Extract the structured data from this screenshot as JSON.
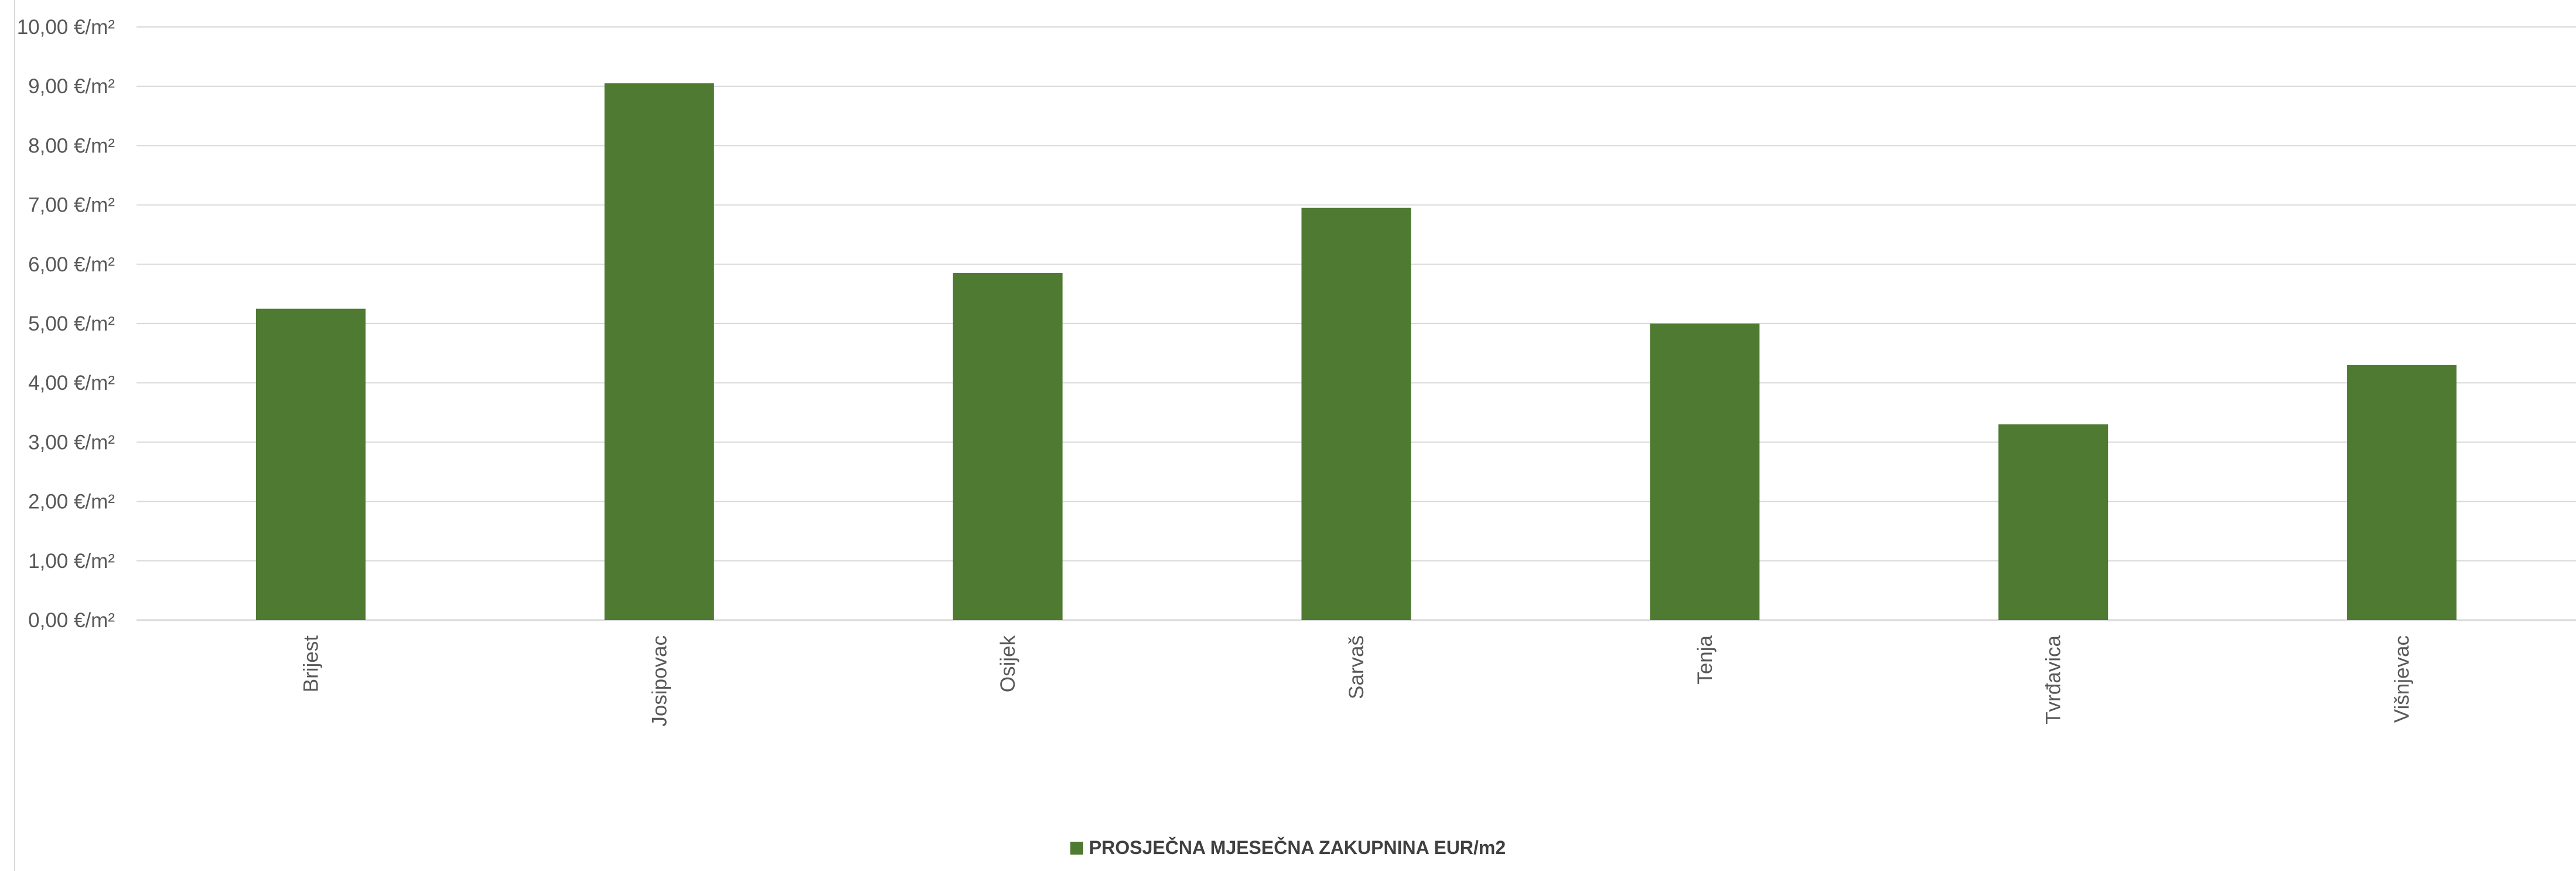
{
  "chart_data": {
    "type": "bar",
    "categories": [
      "Brijest",
      "Josipovac",
      "Osijek",
      "Sarvaš",
      "Tenja",
      "Tvrđavica",
      "Višnjevac"
    ],
    "series": [
      {
        "name": "PROSJEČNA MJESEČNA ZAKUPNINA EUR/m2",
        "values": [
          5.25,
          9.05,
          5.85,
          6.95,
          5.0,
          3.3,
          4.3
        ],
        "color": "#4e7a31"
      }
    ],
    "ylim": [
      0,
      10
    ],
    "yticks": [
      "0,00 €/m²",
      "1,00 €/m²",
      "2,00 €/m²",
      "3,00 €/m²",
      "4,00 €/m²",
      "5,00 €/m²",
      "6,00 €/m²",
      "7,00 €/m²",
      "8,00 €/m²",
      "9,00 €/m²",
      "10,00 €/m²"
    ],
    "title": "",
    "xlabel": "",
    "ylabel": "",
    "grid": true,
    "legend_position": "bottom",
    "colors": {
      "bar": "#4e7a31",
      "grid": "#d9d9d9",
      "text": "#595959"
    }
  }
}
